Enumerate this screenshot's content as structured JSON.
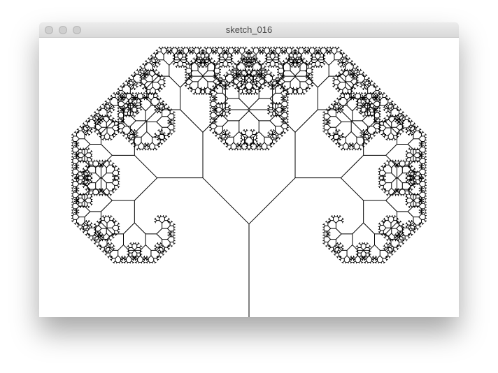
{
  "window": {
    "title": "sketch_016"
  }
}
